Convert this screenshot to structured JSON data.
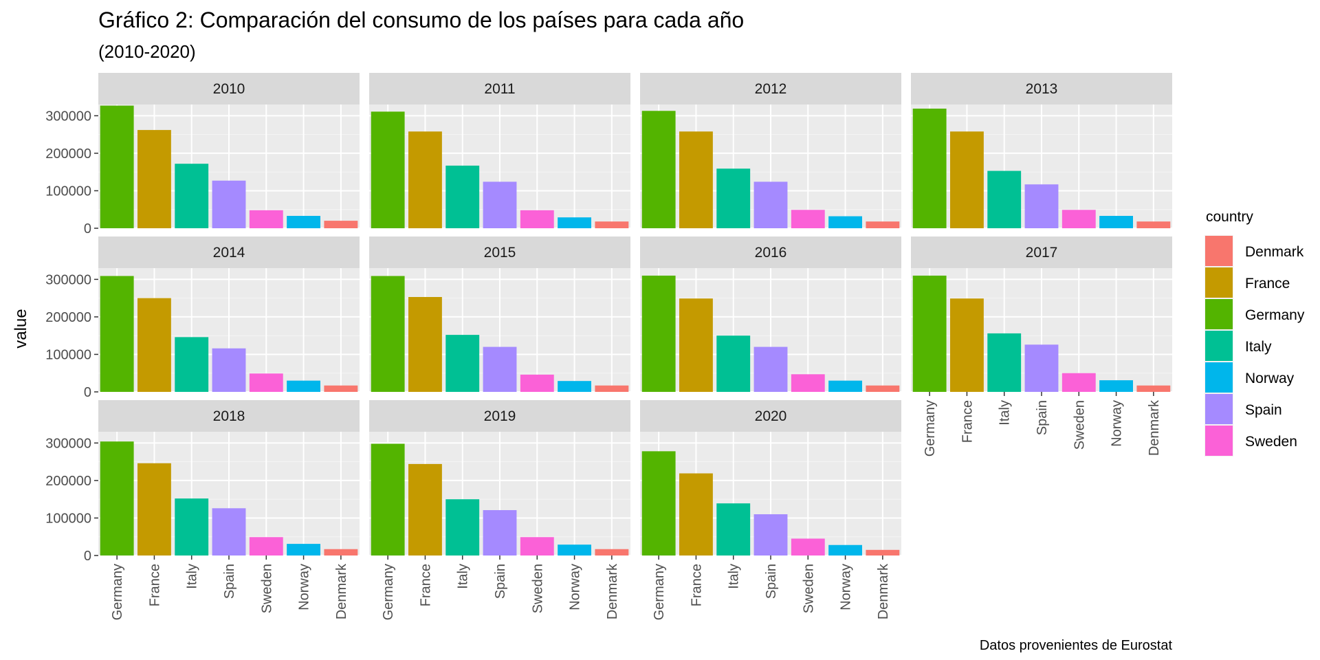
{
  "chart_data": {
    "type": "bar",
    "title": "Gráfico 2: Comparación del consumo de los países para cada año",
    "subtitle": "(2010-2020)",
    "caption": "Datos provenientes de Eurostat",
    "ylabel": "value",
    "xlabel": "",
    "ylim": [
      0,
      330000
    ],
    "yticks": [
      0,
      100000,
      200000,
      300000
    ],
    "ytick_labels": [
      "0",
      "100000",
      "200000",
      "300000"
    ],
    "categories": [
      "Germany",
      "France",
      "Italy",
      "Spain",
      "Sweden",
      "Norway",
      "Denmark"
    ],
    "legend": {
      "title": "country",
      "placement": "right",
      "entries": [
        "Denmark",
        "France",
        "Germany",
        "Italy",
        "Norway",
        "Spain",
        "Sweden"
      ]
    },
    "colors": {
      "Denmark": "#F8766D",
      "France": "#C49A00",
      "Germany": "#53B400",
      "Italy": "#00C094",
      "Norway": "#00B6EB",
      "Spain": "#A58AFF",
      "Sweden": "#FB61D7"
    },
    "grid": true,
    "facet_columns": 4,
    "facets": [
      {
        "year": "2010",
        "values": [
          327000,
          262000,
          172000,
          127000,
          48000,
          33000,
          20000
        ]
      },
      {
        "year": "2011",
        "values": [
          311000,
          258000,
          167000,
          124000,
          48000,
          29000,
          18000
        ]
      },
      {
        "year": "2012",
        "values": [
          313000,
          258000,
          159000,
          124000,
          49000,
          32000,
          18000
        ]
      },
      {
        "year": "2013",
        "values": [
          319000,
          258000,
          153000,
          117000,
          49000,
          33000,
          18000
        ]
      },
      {
        "year": "2014",
        "values": [
          309000,
          250000,
          146000,
          116000,
          49000,
          30000,
          17000
        ]
      },
      {
        "year": "2015",
        "values": [
          309000,
          253000,
          152000,
          120000,
          46000,
          29000,
          17000
        ]
      },
      {
        "year": "2016",
        "values": [
          310000,
          249000,
          150000,
          120000,
          47000,
          30000,
          17000
        ]
      },
      {
        "year": "2017",
        "values": [
          310000,
          249000,
          156000,
          126000,
          50000,
          31000,
          17000
        ]
      },
      {
        "year": "2018",
        "values": [
          304000,
          246000,
          152000,
          126000,
          49000,
          31000,
          17000
        ]
      },
      {
        "year": "2019",
        "values": [
          298000,
          244000,
          150000,
          121000,
          49000,
          29000,
          17000
        ]
      },
      {
        "year": "2020",
        "values": [
          278000,
          219000,
          139000,
          110000,
          45000,
          28000,
          15000
        ]
      }
    ]
  }
}
